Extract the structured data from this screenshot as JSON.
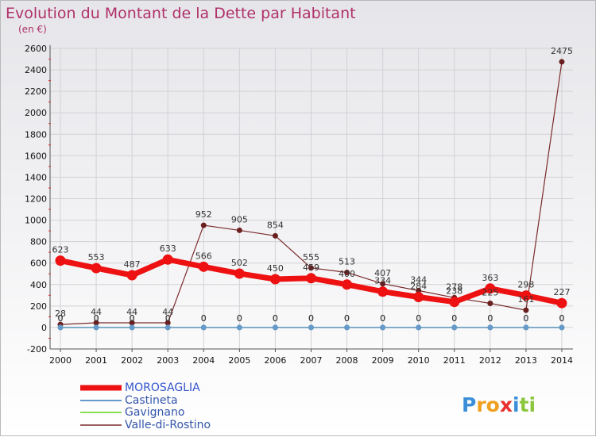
{
  "chart_data": {
    "type": "line",
    "title": "Evolution du Montant de la Dette par Habitant",
    "subtitle": "(en €)",
    "xlabel": "",
    "ylabel": "",
    "x": [
      "2000",
      "2001",
      "2002",
      "2003",
      "2004",
      "2005",
      "2006",
      "2007",
      "2008",
      "2009",
      "2010",
      "2011",
      "2012",
      "2013",
      "2014"
    ],
    "ylim": [
      -200,
      2600
    ],
    "yticks": [
      -200,
      0,
      200,
      400,
      600,
      800,
      1000,
      1200,
      1400,
      1600,
      1800,
      2000,
      2200,
      2400,
      2600
    ],
    "grid": true,
    "legend_position": "bottom-left",
    "series": [
      {
        "name": "MOROSAGLIA",
        "color": "#ee1111",
        "values": [
          623,
          553,
          487,
          633,
          566,
          502,
          450,
          459,
          400,
          334,
          284,
          238,
          363,
          298,
          227
        ],
        "labels": [
          "623",
          "553",
          "487",
          "633",
          "566",
          "502",
          "450",
          "459",
          "400",
          "334",
          "284",
          "238",
          "363",
          "298",
          "227"
        ]
      },
      {
        "name": "Castineta",
        "color": "#6699cc",
        "values": [
          0,
          0,
          0,
          0,
          0,
          0,
          0,
          0,
          0,
          0,
          0,
          0,
          0,
          0,
          0
        ],
        "labels": [
          "0",
          "0",
          "0",
          "0",
          "0",
          "0",
          "0",
          "0",
          "0",
          "0",
          "0",
          "0",
          "0",
          "0",
          "0"
        ]
      },
      {
        "name": "Gavignano",
        "color": "#88dd55",
        "values": [
          0,
          0,
          0,
          0,
          0,
          0,
          0,
          0,
          0,
          0,
          0,
          0,
          0,
          0,
          0
        ],
        "labels": [
          "0",
          "0",
          "0",
          "0",
          "0",
          "0",
          "0",
          "0",
          "0",
          "0",
          "0",
          "0",
          "0",
          "0",
          "0"
        ]
      },
      {
        "name": "Valle-di-Rostino",
        "color": "#7a2b2b",
        "values": [
          28,
          44,
          44,
          44,
          952,
          905,
          854,
          555,
          513,
          407,
          344,
          278,
          225,
          161,
          2475
        ],
        "labels": [
          "28",
          "44",
          "44",
          "44",
          "952",
          "905",
          "854",
          "555",
          "513",
          "407",
          "344",
          "278",
          "225",
          "161",
          "2475"
        ]
      }
    ]
  },
  "brand": {
    "letters": [
      "P",
      "r",
      "o",
      "x",
      "i",
      "t",
      "i"
    ],
    "colors": [
      "#3a8fd8",
      "#f0a020",
      "#f0a020",
      "#e83030",
      "#3a8fd8",
      "#8cc63f",
      "#8cc63f"
    ]
  }
}
